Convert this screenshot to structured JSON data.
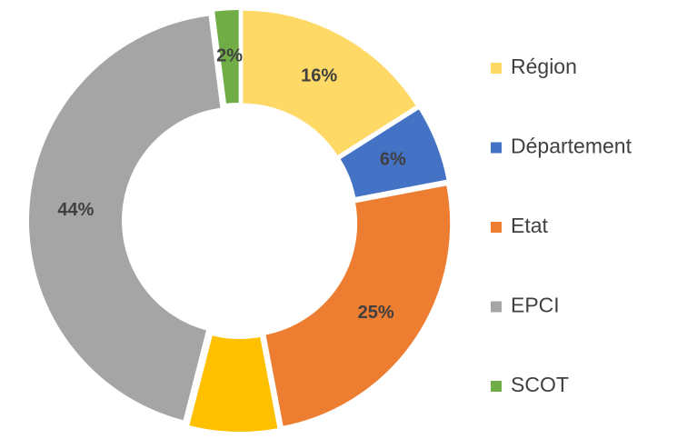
{
  "chart_data": {
    "type": "donut",
    "categories": [
      "Région",
      "Département",
      "Etat",
      null,
      "EPCI",
      "SCOT"
    ],
    "values": [
      16,
      6,
      25,
      7,
      44,
      2
    ],
    "value_labels": [
      "16%",
      "6%",
      "25%",
      null,
      "44%",
      "2%"
    ],
    "colors": [
      "#FFD966",
      "#4472C4",
      "#ED7D31",
      "#FFC000",
      "#A5A5A5",
      "#70AD47"
    ],
    "legend": "right"
  }
}
